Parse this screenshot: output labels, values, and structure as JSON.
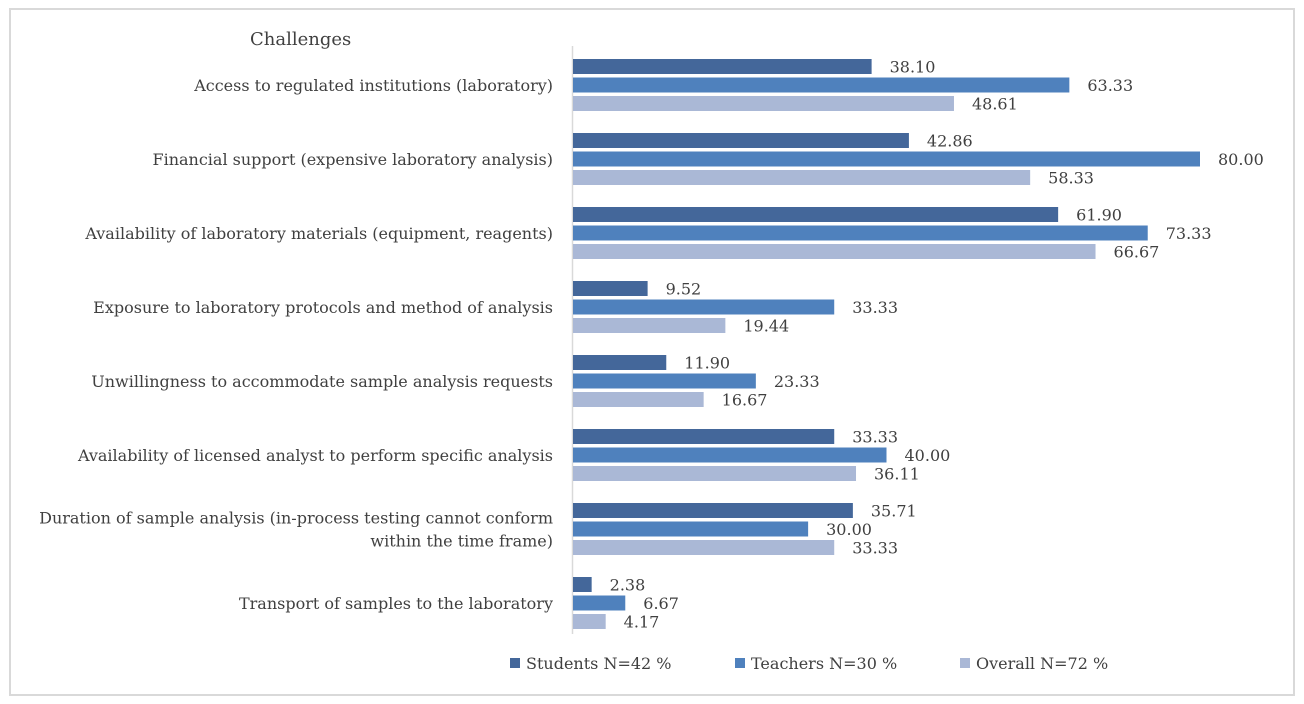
{
  "chart_data": {
    "type": "bar",
    "orientation": "horizontal",
    "title": "Challenges",
    "categories": [
      [
        "Access to regulated institutions (laboratory)"
      ],
      [
        "Financial support (expensive laboratory analysis)"
      ],
      [
        "Availability of laboratory materials (equipment, reagents)"
      ],
      [
        "Exposure to laboratory protocols and method of analysis"
      ],
      [
        "Unwillingness to accommodate sample analysis requests"
      ],
      [
        "Availability of licensed analyst to perform specific analysis"
      ],
      [
        "Duration of sample analysis (in-process testing cannot conform",
        "within the time frame)"
      ],
      [
        "Transport of samples to the laboratory"
      ]
    ],
    "series": [
      {
        "name": "Students N=42 %",
        "color": "#44679a",
        "values": [
          38.1,
          42.86,
          61.9,
          9.52,
          11.9,
          33.33,
          35.71,
          2.38
        ],
        "labels": [
          "38.10",
          "42.86",
          "61.90",
          "9.52",
          "11.90",
          "33.33",
          "35.71",
          "2.38"
        ]
      },
      {
        "name": "Teachers N=30 %",
        "color": "#4f81bd",
        "values": [
          63.33,
          80.0,
          73.33,
          33.33,
          23.33,
          40.0,
          30.0,
          6.67
        ],
        "labels": [
          "63.33",
          "80.00",
          "73.33",
          "33.33",
          "23.33",
          "40.00",
          "30.00",
          "6.67"
        ]
      },
      {
        "name": "Overall N=72 %",
        "color": "#aab8d6",
        "values": [
          48.61,
          58.33,
          66.67,
          19.44,
          16.67,
          36.11,
          33.33,
          4.17
        ],
        "labels": [
          "48.61",
          "58.33",
          "66.67",
          "19.44",
          "16.67",
          "36.11",
          "33.33",
          "4.17"
        ]
      }
    ],
    "xlim": [
      0,
      80
    ],
    "grid": false,
    "legend_position": "bottom"
  }
}
